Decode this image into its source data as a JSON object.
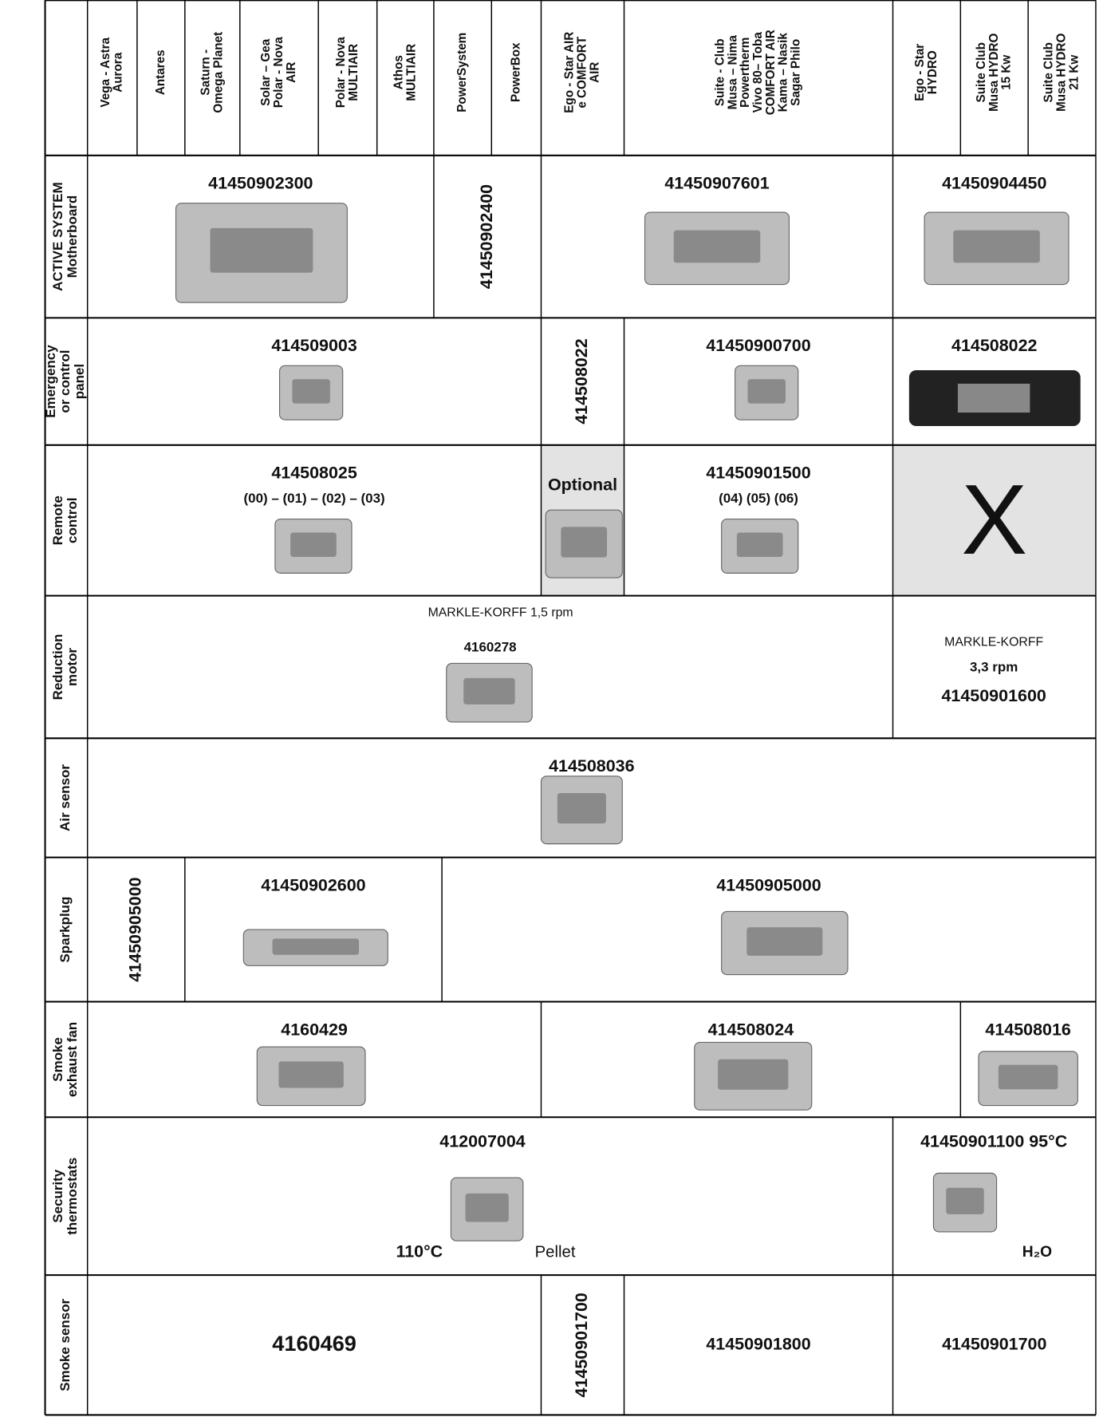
{
  "header": {
    "columns": [
      [
        "Vega - Astra",
        "Aurora"
      ],
      [
        "Antares"
      ],
      [
        "Saturn -",
        "Omega Planet"
      ],
      [
        "Solar – Gea",
        "Polar - Nova",
        "AIR"
      ],
      [
        "Polar - Nova",
        "MULTIAIR"
      ],
      [
        "Athos",
        "MULTIAIR"
      ],
      [
        "PowerSystem"
      ],
      [
        "PowerBox"
      ],
      [
        "Ego - Star AIR",
        "e COMFORT",
        "AIR"
      ],
      [
        "Suite - Club",
        "Musa – Nima",
        "Powertherm",
        "Vivo 80– Toba",
        "COMFORT AIR",
        "Kama – Nasik",
        "Sagar Philo"
      ],
      [
        "Ego - Star",
        "HYDRO"
      ],
      [
        "Suite Club",
        "Musa HYDRO",
        "15 Kw"
      ],
      [
        "Suite Club",
        "Musa HYDRO",
        "21 Kw"
      ]
    ]
  },
  "rows": [
    {
      "label": [
        "ACTIVE SYSTEM",
        "Motherboard"
      ],
      "cells": [
        {
          "lines": [
            "41450902300"
          ]
        },
        {
          "lines": [
            "41450902400"
          ]
        },
        {
          "lines": [
            "41450907601"
          ]
        },
        {
          "lines": [
            "41450904450"
          ]
        }
      ]
    },
    {
      "label": [
        "Emergency",
        "or control",
        "panel"
      ],
      "cells": [
        {
          "lines": [
            "414509003"
          ]
        },
        {
          "lines": [
            "414508022"
          ]
        },
        {
          "lines": [
            "41450900700"
          ]
        },
        {
          "lines": [
            "414508022"
          ]
        }
      ]
    },
    {
      "label": [
        "Remote",
        "control"
      ],
      "cells": [
        {
          "lines": [
            "414508025",
            "(00) – (01) – (02) – (03)"
          ]
        },
        {
          "lines": [
            "Optional"
          ]
        },
        {
          "lines": [
            "41450901500",
            "(04) (05) (06)"
          ]
        },
        {
          "lines": [
            "X"
          ]
        }
      ]
    },
    {
      "label": [
        "Reduction",
        "motor"
      ],
      "cells": [
        {
          "lines": [
            "MARKLE-KORFF 1,5 rpm",
            "4160278"
          ]
        },
        {
          "lines": [
            "MARKLE-KORFF",
            "3,3 rpm",
            "41450901600"
          ]
        }
      ]
    },
    {
      "label": [
        "Air sensor"
      ],
      "cells": [
        {
          "lines": [
            "414508036"
          ]
        }
      ]
    },
    {
      "label": [
        "Sparkplug"
      ],
      "cells": [
        {
          "lines": [
            "41450905000"
          ]
        },
        {
          "lines": [
            "41450902600"
          ]
        },
        {
          "lines": [
            "41450905000"
          ]
        }
      ]
    },
    {
      "label": [
        "Smoke",
        "exhaust fan"
      ],
      "cells": [
        {
          "lines": [
            "4160429"
          ]
        },
        {
          "lines": [
            "414508024"
          ]
        },
        {
          "lines": [
            "414508016"
          ]
        }
      ]
    },
    {
      "label": [
        "Security",
        "thermostats"
      ],
      "cells": [
        {
          "lines": [
            "412007004",
            "110°C",
            "Pellet"
          ]
        },
        {
          "lines": [
            "41450901100 95°C",
            "H₂O"
          ]
        }
      ]
    },
    {
      "label": [
        "Smoke sensor"
      ],
      "cells": [
        {
          "lines": [
            "4160469"
          ]
        },
        {
          "lines": [
            "41450901700"
          ]
        },
        {
          "lines": [
            "41450901800"
          ]
        },
        {
          "lines": [
            "41450901700"
          ]
        }
      ]
    }
  ]
}
